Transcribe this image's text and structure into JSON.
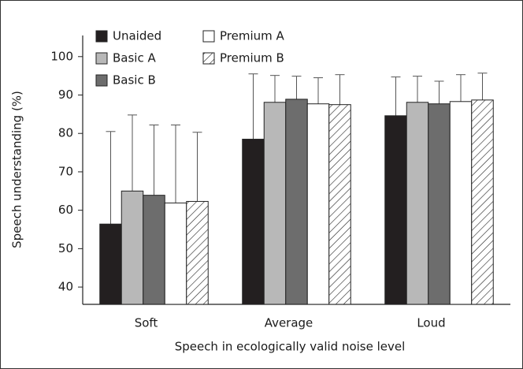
{
  "chart_data": {
    "type": "bar",
    "categories": [
      "Soft",
      "Average",
      "Loud"
    ],
    "xlabel": "Speech in ecologically valid noise level",
    "ylabel": "Speech understanding (%)",
    "ylim": [
      35.5,
      105.5
    ],
    "yticks": [
      40,
      50,
      60,
      70,
      80,
      90,
      100
    ],
    "series": [
      {
        "name": "Unaided",
        "color": "#231f20",
        "values": [
          56.4,
          78.5,
          84.6
        ],
        "errors": [
          24.1,
          17.0,
          10.1
        ]
      },
      {
        "name": "Basic A",
        "color": "#b8b8b8",
        "values": [
          65.0,
          88.1,
          88.1
        ],
        "errors": [
          19.8,
          7.0,
          6.8
        ]
      },
      {
        "name": "Basic B",
        "color": "#6d6d6d",
        "values": [
          63.9,
          88.9,
          87.7
        ],
        "errors": [
          18.3,
          6.0,
          5.9
        ]
      },
      {
        "name": "Premium A",
        "color": "#ffffff",
        "values": [
          61.9,
          87.7,
          88.3
        ],
        "errors": [
          20.3,
          6.8,
          7.0
        ]
      },
      {
        "name": "Premium B",
        "color": "#ffffff",
        "pattern": "hatch",
        "values": [
          62.3,
          87.5,
          88.7
        ],
        "errors": [
          18.0,
          7.8,
          7.0
        ]
      }
    ]
  }
}
